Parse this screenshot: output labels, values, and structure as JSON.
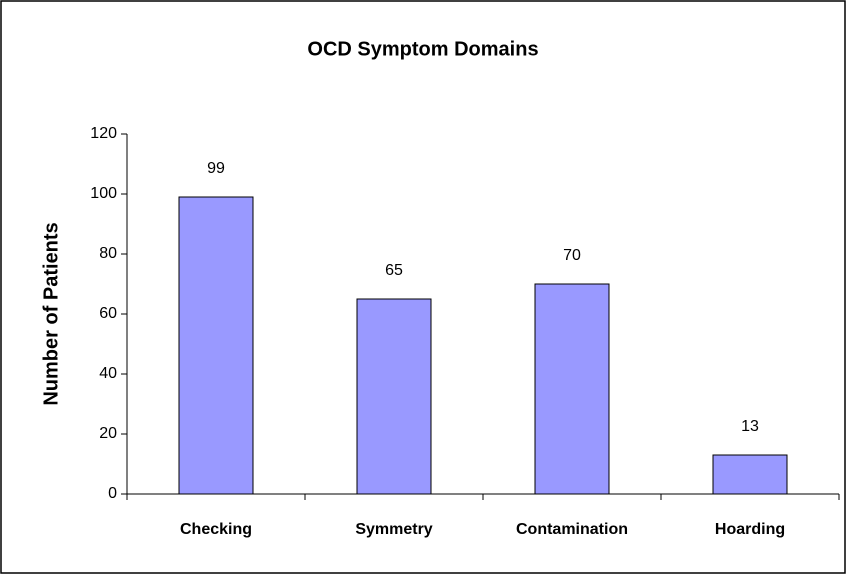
{
  "chart_data": {
    "type": "bar",
    "title": "OCD Symptom Domains",
    "y_label": "Number of Patients",
    "categories": [
      "Checking",
      "Symmetry",
      "Contamination",
      "Hoarding"
    ],
    "values": [
      99,
      65,
      70,
      13
    ],
    "color": "#9999ff",
    "ylim": [
      0,
      120
    ],
    "yticks": [
      0,
      20,
      40,
      60,
      80,
      100,
      120
    ],
    "grid": false
  }
}
